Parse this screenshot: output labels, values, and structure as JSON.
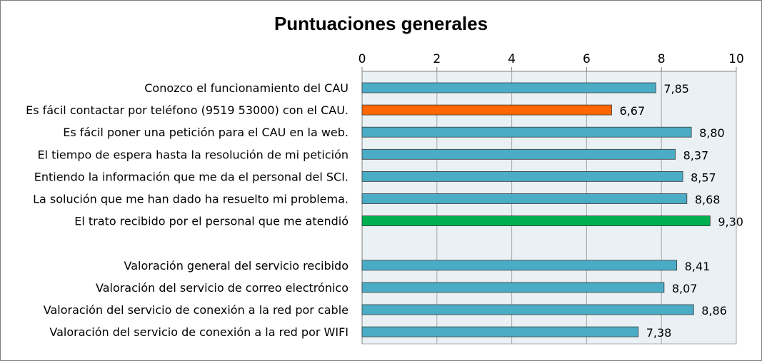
{
  "chart_data": {
    "type": "bar",
    "orientation": "horizontal",
    "title": "Puntuaciones generales",
    "xlabel": "",
    "ylabel": "",
    "xlim": [
      0,
      10
    ],
    "x_ticks": [
      "0",
      "2",
      "4",
      "6",
      "8",
      "10"
    ],
    "axis_position": "top",
    "grid": "vertical",
    "legend": "none",
    "categories": [
      "Conozco el funcionamiento del CAU",
      "Es fácil contactar por teléfono (9519 53000) con el CAU.",
      "Es fácil poner una petición para el CAU en la web.",
      "El tiempo de espera hasta la resolución de mi petición",
      "Entiendo la información que me da el personal del SCI.",
      "La solución que me han dado ha resuelto mi problema.",
      "El trato recibido por el personal que me atendió",
      "",
      "Valoración general del servicio recibido",
      "Valoración del servicio de correo electrónico",
      "Valoración del servicio de conexión a la red por cable",
      "Valoración del servicio de conexión a la red por WIFI"
    ],
    "values": [
      7.85,
      6.67,
      8.8,
      8.37,
      8.57,
      8.68,
      9.3,
      null,
      8.41,
      8.07,
      8.86,
      7.38
    ],
    "data_labels": [
      "7,85",
      "6,67",
      "8,80",
      "8,37",
      "8,57",
      "8,68",
      "9,30",
      "",
      "8,41",
      "8,07",
      "8,86",
      "7,38"
    ],
    "bar_colors": [
      "#4bacc6",
      "#ff6600",
      "#4bacc6",
      "#4bacc6",
      "#4bacc6",
      "#4bacc6",
      "#00b050",
      "",
      "#4bacc6",
      "#4bacc6",
      "#4bacc6",
      "#4bacc6"
    ],
    "plot_background": "#eaf1f5"
  }
}
